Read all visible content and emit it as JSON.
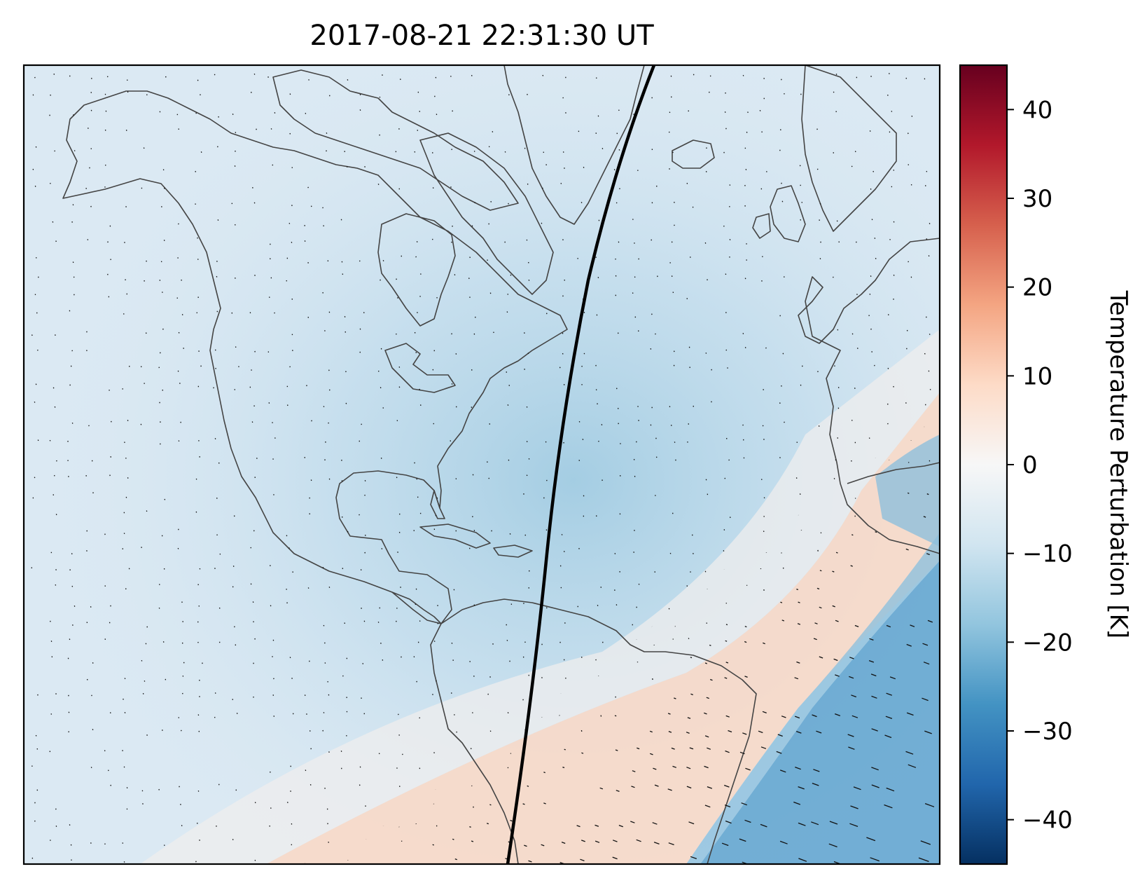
{
  "title": "2017-08-21 22:31:30 UT",
  "colorbar": {
    "label": "Temperature Perturbation [K]",
    "min": -45,
    "max": 45,
    "ticks": [
      {
        "value": 40,
        "label": "40"
      },
      {
        "value": 30,
        "label": "30"
      },
      {
        "value": 20,
        "label": "20"
      },
      {
        "value": 10,
        "label": "10"
      },
      {
        "value": 0,
        "label": "0"
      },
      {
        "value": -10,
        "label": "−10"
      },
      {
        "value": -20,
        "label": "−20"
      },
      {
        "value": -30,
        "label": "−30"
      },
      {
        "value": -40,
        "label": "−40"
      }
    ],
    "colormap": [
      "#053061",
      "#2166ac",
      "#4393c3",
      "#92c5de",
      "#d1e5f0",
      "#f7f7f7",
      "#fddbc7",
      "#f4a582",
      "#d6604d",
      "#b2182b",
      "#67001f"
    ]
  },
  "map": {
    "region": "North Atlantic, North and South America, Western Europe and Africa",
    "path_line_color": "#000000",
    "coastline_color": "#444444"
  }
}
